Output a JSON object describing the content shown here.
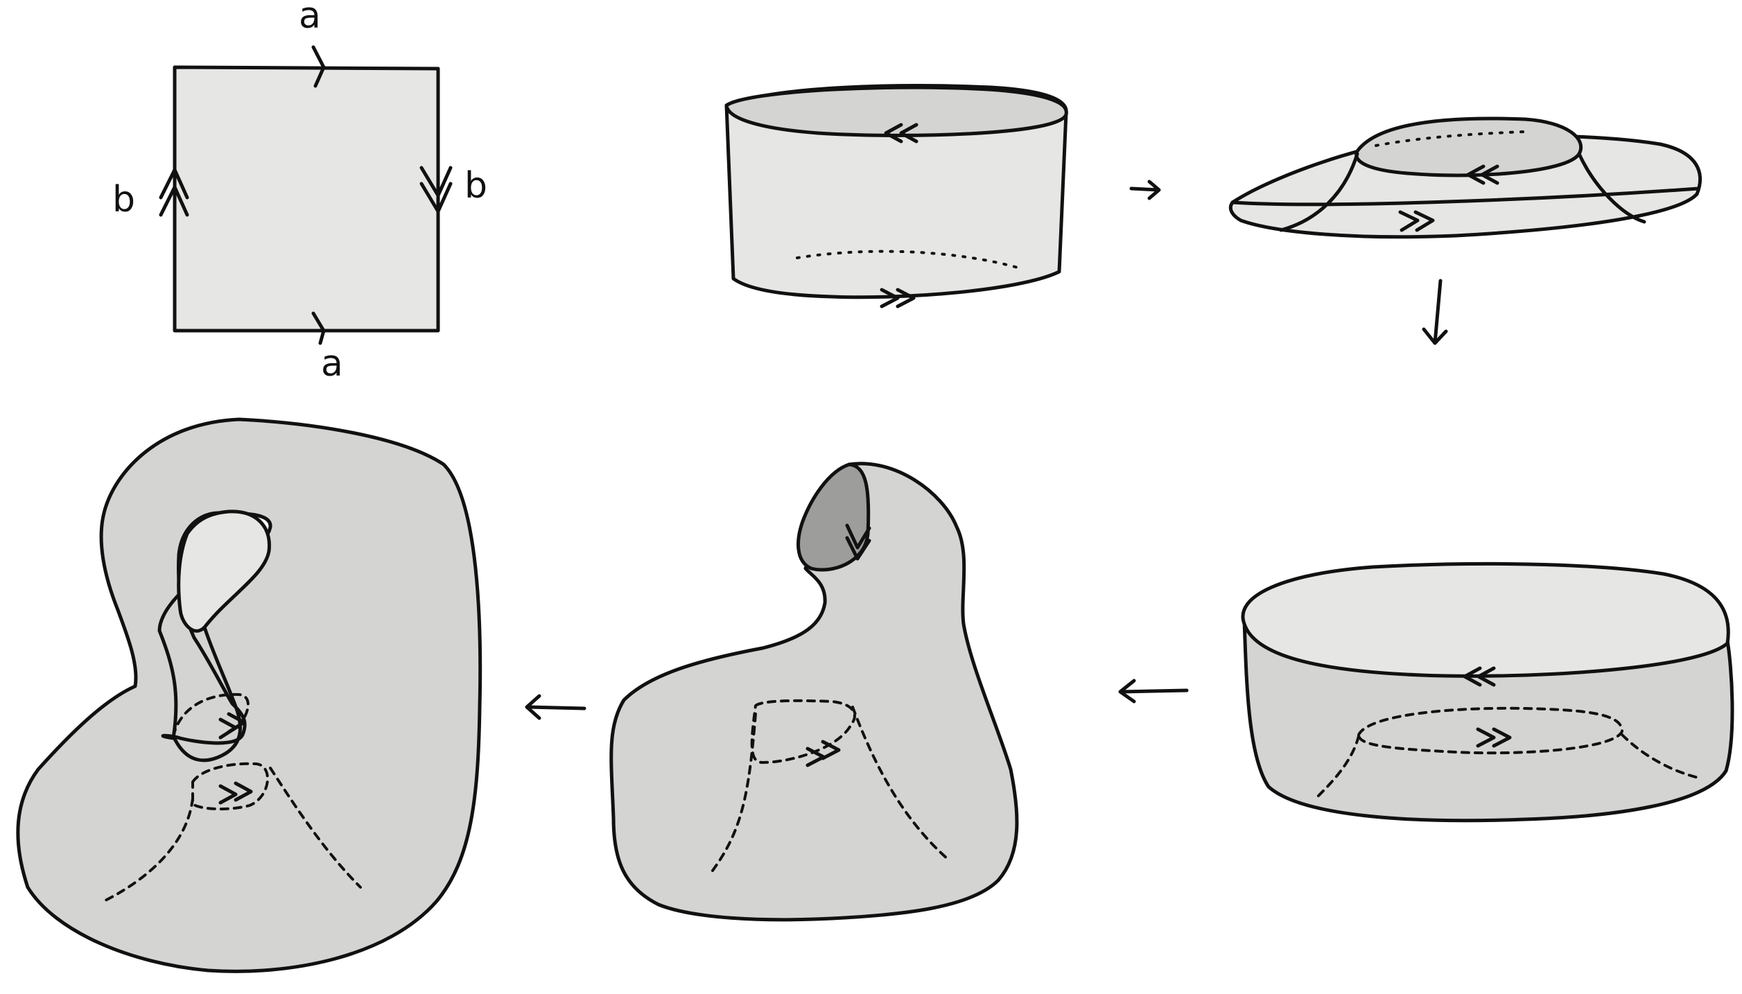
{
  "diagram": {
    "subject": "klein-bottle-construction",
    "square_labels": {
      "top": "a",
      "bottom": "a",
      "left": "b",
      "right": "b"
    },
    "step_count": 6
  }
}
